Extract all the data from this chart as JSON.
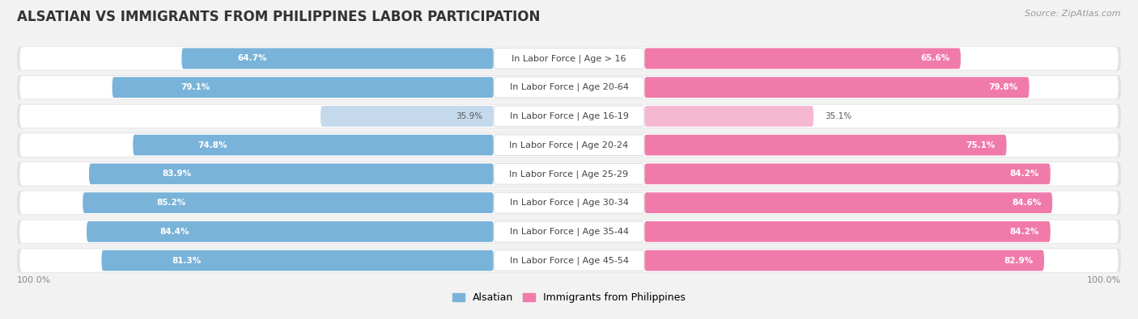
{
  "title": "ALSATIAN VS IMMIGRANTS FROM PHILIPPINES LABOR PARTICIPATION",
  "source": "Source: ZipAtlas.com",
  "categories": [
    "In Labor Force | Age > 16",
    "In Labor Force | Age 20-64",
    "In Labor Force | Age 16-19",
    "In Labor Force | Age 20-24",
    "In Labor Force | Age 25-29",
    "In Labor Force | Age 30-34",
    "In Labor Force | Age 35-44",
    "In Labor Force | Age 45-54"
  ],
  "alsatian_values": [
    64.7,
    79.1,
    35.9,
    74.8,
    83.9,
    85.2,
    84.4,
    81.3
  ],
  "philippines_values": [
    65.6,
    79.8,
    35.1,
    75.1,
    84.2,
    84.6,
    84.2,
    82.9
  ],
  "alsatian_color": "#7ab3d9",
  "alsatian_color_light": "#c5d9ed",
  "philippines_color": "#f07baa",
  "philippines_color_light": "#f5b8d0",
  "bg_color": "#f2f2f2",
  "row_bg_color": "#e8e8e8",
  "max_value": 100.0,
  "legend_alsatian": "Alsatian",
  "legend_philippines": "Immigrants from Philippines",
  "title_fontsize": 12,
  "label_fontsize": 8,
  "value_fontsize": 7.5,
  "legend_fontsize": 9,
  "source_fontsize": 8
}
